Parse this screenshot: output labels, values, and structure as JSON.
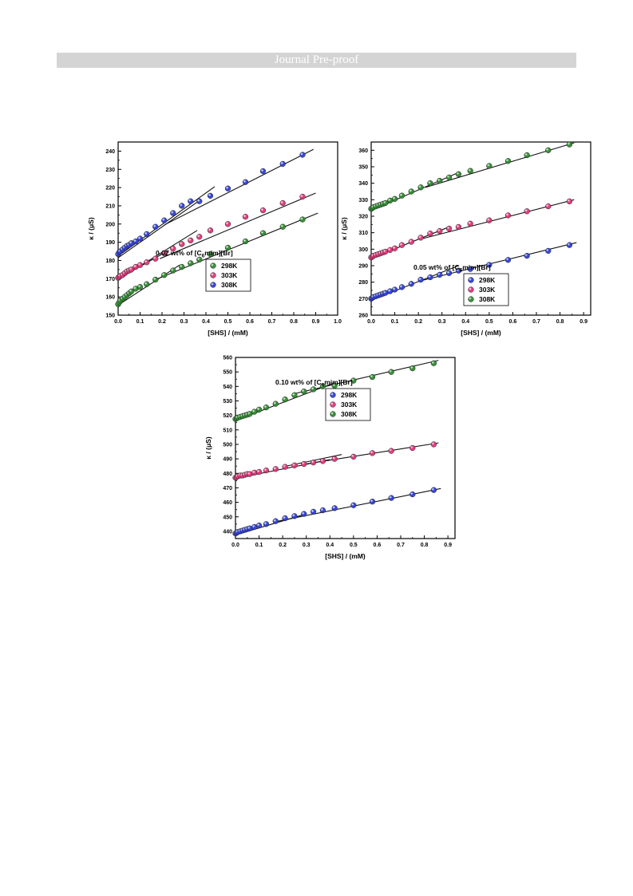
{
  "page": {
    "banner": "Journal Pre-proof"
  },
  "chart_data": [
    {
      "type": "scatter",
      "title": "",
      "legend_title": "0.02 wt% of [C6mim][Br]",
      "legend_title_parts": [
        "0.02 wt% of [C",
        "6",
        "mim][Br]"
      ],
      "legend_position": "center-right",
      "xlabel": "[SHS] / (mM)",
      "ylabel": "κ / (μS)",
      "xlim": [
        0,
        1.0
      ],
      "ylim": [
        150,
        245
      ],
      "xticks": [
        0.0,
        0.1,
        0.2,
        0.3,
        0.4,
        0.5,
        0.6,
        0.7,
        0.8,
        0.9,
        1.0
      ],
      "yticks": [
        150,
        160,
        170,
        180,
        190,
        200,
        210,
        220,
        230,
        240
      ],
      "xtick_decimals": 1,
      "series": [
        {
          "name": "298K",
          "color": "#2e8b2e",
          "x": [
            0.0,
            0.005,
            0.01,
            0.02,
            0.03,
            0.04,
            0.05,
            0.06,
            0.08,
            0.1,
            0.13,
            0.17,
            0.21,
            0.25,
            0.29,
            0.33,
            0.37,
            0.42,
            0.5,
            0.58,
            0.66,
            0.75,
            0.84
          ],
          "y": [
            156,
            157,
            158,
            159,
            160,
            161,
            162,
            163,
            164.5,
            165.5,
            167,
            169.5,
            172,
            174.5,
            176.5,
            178.5,
            180.5,
            183.5,
            187,
            190.5,
            195,
            198.5,
            202.5
          ]
        },
        {
          "name": "303K",
          "color": "#e0357a",
          "x": [
            0.0,
            0.005,
            0.01,
            0.02,
            0.03,
            0.04,
            0.05,
            0.06,
            0.08,
            0.1,
            0.13,
            0.17,
            0.21,
            0.25,
            0.29,
            0.33,
            0.37,
            0.42,
            0.5,
            0.58,
            0.66,
            0.75,
            0.84
          ],
          "y": [
            170.5,
            171,
            171.5,
            172,
            173,
            174,
            174.5,
            175,
            176.5,
            177.5,
            179,
            181,
            184,
            186.5,
            189,
            191,
            193,
            196.5,
            200,
            204,
            207.5,
            211.5,
            215
          ]
        },
        {
          "name": "308K",
          "color": "#2f3fd8",
          "x": [
            0.0,
            0.005,
            0.01,
            0.02,
            0.03,
            0.04,
            0.05,
            0.06,
            0.08,
            0.1,
            0.13,
            0.17,
            0.21,
            0.25,
            0.29,
            0.33,
            0.37,
            0.42,
            0.5,
            0.58,
            0.66,
            0.75,
            0.84
          ],
          "y": [
            183.5,
            184.5,
            185,
            186,
            187,
            188,
            188.5,
            189.5,
            190.5,
            192,
            194.5,
            198.5,
            202,
            206,
            210,
            212.5,
            212.5,
            215.5,
            219.5,
            223,
            229,
            233,
            238
          ]
        }
      ],
      "fit_lines": [
        {
          "x": [
            0.0,
            0.28
          ],
          "y": [
            155.5,
            177.5
          ]
        },
        {
          "x": [
            0.16,
            0.91
          ],
          "y": [
            169,
            206
          ]
        },
        {
          "x": [
            0.0,
            0.23
          ],
          "y": [
            170,
            185.5
          ]
        },
        {
          "x": [
            0.19,
            0.9
          ],
          "y": [
            181,
            217
          ]
        },
        {
          "x": [
            0.0,
            0.36
          ],
          "y": [
            181.5,
            212
          ]
        },
        {
          "x": [
            0.21,
            0.89
          ],
          "y": [
            199.5,
            241
          ]
        },
        {
          "x": [
            0.0,
            0.44
          ],
          "y": [
            182.5,
            220.5
          ]
        },
        {
          "x": [
            0.0,
            0.36
          ],
          "y": [
            169.5,
            196.5
          ]
        }
      ]
    },
    {
      "type": "scatter",
      "title": "",
      "legend_title": "0.05 wt% of [C6mim][Br]",
      "legend_title_parts": [
        "0.05 wt% of [C",
        "6",
        "mim][Br]"
      ],
      "legend_position": "bottom-right",
      "xlabel": "[SHS] / (mM)",
      "ylabel": "κ / (μS)",
      "xlim": [
        0,
        0.93
      ],
      "ylim": [
        260,
        365
      ],
      "xticks": [
        0.0,
        0.1,
        0.2,
        0.3,
        0.4,
        0.5,
        0.6,
        0.7,
        0.8,
        0.9
      ],
      "yticks": [
        260,
        270,
        280,
        290,
        300,
        310,
        320,
        330,
        340,
        350,
        360
      ],
      "xtick_decimals": 1,
      "series": [
        {
          "name": "298K",
          "color": "#2f3fd8",
          "x": [
            0.0,
            0.005,
            0.01,
            0.02,
            0.03,
            0.04,
            0.05,
            0.06,
            0.08,
            0.1,
            0.13,
            0.17,
            0.21,
            0.25,
            0.29,
            0.33,
            0.37,
            0.42,
            0.5,
            0.58,
            0.66,
            0.75,
            0.84
          ],
          "y": [
            270,
            270.5,
            271,
            271.5,
            272,
            272.5,
            273,
            273.5,
            274.5,
            275.5,
            277,
            279,
            281.5,
            283,
            284.5,
            285.5,
            287,
            288,
            290.5,
            293.5,
            296,
            299,
            302.5
          ]
        },
        {
          "name": "303K",
          "color": "#e0357a",
          "x": [
            0.0,
            0.005,
            0.01,
            0.02,
            0.03,
            0.04,
            0.05,
            0.06,
            0.08,
            0.1,
            0.13,
            0.17,
            0.21,
            0.25,
            0.29,
            0.33,
            0.37,
            0.42,
            0.5,
            0.58,
            0.66,
            0.75,
            0.84
          ],
          "y": [
            295,
            295.5,
            296,
            296.5,
            297,
            297.5,
            298,
            298.5,
            299.5,
            300.5,
            302.5,
            304.5,
            307,
            309.5,
            311,
            312.5,
            313.5,
            315.5,
            317.5,
            320.5,
            323,
            326,
            329
          ]
        },
        {
          "name": "308K",
          "color": "#2e8b2e",
          "x": [
            0.0,
            0.005,
            0.01,
            0.02,
            0.03,
            0.04,
            0.05,
            0.06,
            0.08,
            0.1,
            0.13,
            0.17,
            0.21,
            0.25,
            0.29,
            0.33,
            0.37,
            0.42,
            0.5,
            0.58,
            0.66,
            0.75,
            0.84
          ],
          "y": [
            324.5,
            325,
            325.5,
            326,
            326.5,
            327,
            327.5,
            328,
            329.5,
            330.5,
            332.5,
            335,
            337.5,
            340,
            341.5,
            343.5,
            345.5,
            347.5,
            350.5,
            353.5,
            357,
            360,
            363.5
          ]
        }
      ],
      "fit_lines": [
        {
          "x": [
            0.0,
            0.37
          ],
          "y": [
            269,
            290
          ]
        },
        {
          "x": [
            0.2,
            0.87
          ],
          "y": [
            280.5,
            304
          ]
        },
        {
          "x": [
            0.0,
            0.33
          ],
          "y": [
            294.5,
            313.5
          ]
        },
        {
          "x": [
            0.22,
            0.86
          ],
          "y": [
            306.5,
            330
          ]
        },
        {
          "x": [
            0.0,
            0.37
          ],
          "y": [
            323.5,
            346.5
          ]
        },
        {
          "x": [
            0.23,
            0.86
          ],
          "y": [
            337.5,
            364.5
          ]
        }
      ]
    },
    {
      "type": "scatter",
      "title": "",
      "legend_title": "0.10 wt% of [C6mim][Br]",
      "legend_title_parts": [
        "0.10 wt% of [C",
        "6",
        "mim][Br]"
      ],
      "legend_position": "top-right",
      "xlabel": "[SHS] / (mM)",
      "ylabel": "κ / (μS)",
      "xlim": [
        0,
        0.93
      ],
      "ylim": [
        435,
        560
      ],
      "xticks": [
        0.0,
        0.1,
        0.2,
        0.3,
        0.4,
        0.5,
        0.6,
        0.7,
        0.8,
        0.9
      ],
      "yticks": [
        440,
        450,
        460,
        470,
        480,
        490,
        500,
        510,
        520,
        530,
        540,
        550,
        560
      ],
      "xtick_decimals": 1,
      "series": [
        {
          "name": "298K",
          "color": "#2f3fd8",
          "x": [
            0.0,
            0.005,
            0.01,
            0.02,
            0.03,
            0.04,
            0.05,
            0.06,
            0.08,
            0.1,
            0.13,
            0.17,
            0.21,
            0.25,
            0.29,
            0.33,
            0.37,
            0.42,
            0.5,
            0.58,
            0.66,
            0.75,
            0.84
          ],
          "y": [
            438.5,
            439,
            439.5,
            440,
            440.5,
            441,
            441.5,
            442,
            443,
            444,
            445,
            447,
            449,
            450.5,
            452,
            453.5,
            454.5,
            456,
            458,
            460.5,
            463,
            465.5,
            468.5
          ]
        },
        {
          "name": "303K",
          "color": "#e0357a",
          "x": [
            0.0,
            0.005,
            0.01,
            0.02,
            0.03,
            0.04,
            0.05,
            0.06,
            0.08,
            0.1,
            0.13,
            0.17,
            0.21,
            0.25,
            0.29,
            0.33,
            0.37,
            0.42,
            0.5,
            0.58,
            0.66,
            0.75,
            0.84
          ],
          "y": [
            477,
            477.5,
            478,
            478.5,
            478.5,
            479,
            479.5,
            479.5,
            480.5,
            481,
            482,
            483,
            484.5,
            485.5,
            486.5,
            487.5,
            488.5,
            490,
            491.5,
            494,
            495.5,
            497.5,
            500
          ]
        },
        {
          "name": "308K",
          "color": "#2e8b2e",
          "x": [
            0.0,
            0.005,
            0.01,
            0.02,
            0.03,
            0.04,
            0.05,
            0.06,
            0.08,
            0.1,
            0.13,
            0.17,
            0.21,
            0.25,
            0.29,
            0.33,
            0.37,
            0.42,
            0.5,
            0.58,
            0.66,
            0.75,
            0.84
          ],
          "y": [
            517.5,
            518,
            518.5,
            519,
            519.5,
            520,
            520.5,
            521,
            522.5,
            524,
            525.5,
            528,
            531,
            534,
            536.5,
            538,
            540,
            540.5,
            544,
            546.5,
            550,
            552.5,
            556
          ]
        }
      ],
      "fit_lines": [
        {
          "x": [
            0.0,
            0.3
          ],
          "y": [
            437.5,
            452
          ]
        },
        {
          "x": [
            0.18,
            0.87
          ],
          "y": [
            447,
            469.5
          ]
        },
        {
          "x": [
            0.0,
            0.4
          ],
          "y": [
            476.5,
            489.5
          ]
        },
        {
          "x": [
            0.2,
            0.45
          ],
          "y": [
            484.5,
            493
          ]
        },
        {
          "x": [
            0.3,
            0.86
          ],
          "y": [
            486.5,
            501
          ]
        },
        {
          "x": [
            0.0,
            0.42
          ],
          "y": [
            516.5,
            542.5
          ]
        },
        {
          "x": [
            0.25,
            0.86
          ],
          "y": [
            535,
            558
          ]
        }
      ]
    }
  ]
}
